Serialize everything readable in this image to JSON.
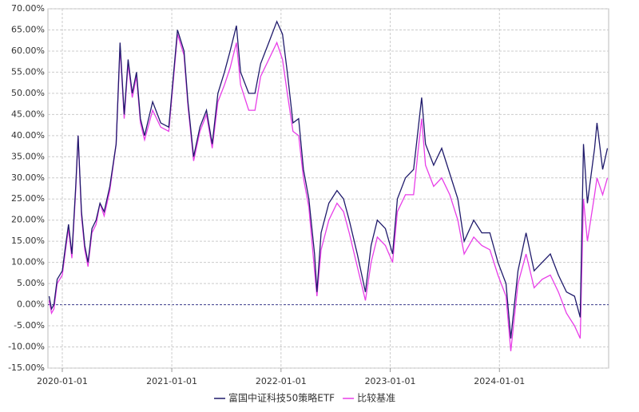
{
  "chart_data": {
    "type": "line",
    "x": [
      "2019-11-18",
      "2019-11-26",
      "2019-12-04",
      "2019-12-15",
      "2020-01-01",
      "2020-01-12",
      "2020-01-22",
      "2020-02-02",
      "2020-02-15",
      "2020-02-23",
      "2020-03-05",
      "2020-03-16",
      "2020-03-27",
      "2020-04-09",
      "2020-04-23",
      "2020-05-06",
      "2020-05-20",
      "2020-06-08",
      "2020-06-29",
      "2020-07-12",
      "2020-07-26",
      "2020-08-08",
      "2020-08-22",
      "2020-09-05",
      "2020-09-18",
      "2020-10-02",
      "2020-10-29",
      "2020-11-25",
      "2020-12-22",
      "2021-01-01",
      "2021-01-20",
      "2021-02-11",
      "2021-02-24",
      "2021-03-15",
      "2021-04-05",
      "2021-04-27",
      "2021-05-16",
      "2021-06-04",
      "2021-06-26",
      "2021-07-15",
      "2021-08-05",
      "2021-08-19",
      "2021-09-15",
      "2021-10-06",
      "2021-10-25",
      "2021-11-21",
      "2021-12-18",
      "2022-01-06",
      "2022-01-22",
      "2022-02-10",
      "2022-03-01",
      "2022-03-17",
      "2022-04-04",
      "2022-04-23",
      "2022-05-01",
      "2022-05-15",
      "2022-06-10",
      "2022-07-07",
      "2022-07-29",
      "2022-08-17",
      "2022-09-13",
      "2022-10-10",
      "2022-10-29",
      "2022-11-19",
      "2022-12-16",
      "2023-01-09",
      "2023-01-25",
      "2023-02-21",
      "2023-03-20",
      "2023-04-02",
      "2023-04-16",
      "2023-04-29",
      "2023-05-26",
      "2023-06-22",
      "2023-07-19",
      "2023-08-15",
      "2023-09-05",
      "2023-10-07",
      "2023-11-03",
      "2023-11-30",
      "2023-12-27",
      "2024-01-23",
      "2024-02-08",
      "2024-03-03",
      "2024-03-30",
      "2024-04-26",
      "2024-05-23",
      "2024-06-19",
      "2024-07-16",
      "2024-08-12",
      "2024-09-08",
      "2024-09-27",
      "2024-10-08",
      "2024-10-21",
      "2024-11-14",
      "2024-11-22",
      "2024-12-11",
      "2024-12-27"
    ],
    "series": [
      {
        "name": "富国中证科技50策略ETF",
        "color": "#1f1a6b",
        "values": [
          2,
          -1,
          0,
          6,
          8,
          14,
          19,
          12,
          28,
          40,
          22,
          14,
          10,
          18,
          20,
          24,
          22,
          28,
          38,
          62,
          45,
          58,
          50,
          55,
          44,
          40,
          48,
          43,
          42,
          50,
          65,
          60,
          48,
          35,
          42,
          46,
          38,
          50,
          55,
          60,
          66,
          55,
          50,
          50,
          57,
          62,
          67,
          64,
          55,
          43,
          44,
          32,
          25,
          12,
          3,
          17,
          24,
          27,
          25,
          20,
          12,
          3,
          14,
          20,
          18,
          12,
          25,
          30,
          32,
          40,
          49,
          38,
          33,
          37,
          31,
          25,
          15,
          20,
          17,
          17,
          10,
          5,
          -8,
          8,
          17,
          8,
          10,
          12,
          7,
          3,
          2,
          -3,
          38,
          24,
          37,
          43,
          32,
          37
        ]
      },
      {
        "name": "比较基准",
        "color": "#e83ee8",
        "values": [
          1,
          -2,
          -1,
          5,
          7,
          13,
          18,
          11,
          27,
          40,
          21,
          13,
          9,
          17,
          19,
          24,
          21,
          27,
          38,
          61,
          44,
          57,
          49,
          54,
          43,
          39,
          46,
          42,
          41,
          49,
          64,
          59,
          47,
          34,
          41,
          45,
          37,
          48,
          52,
          56,
          62,
          52,
          46,
          46,
          54,
          58,
          62,
          58,
          50,
          41,
          40,
          30,
          23,
          8,
          2,
          13,
          20,
          24,
          22,
          17,
          9,
          1,
          10,
          16,
          14,
          10,
          22,
          26,
          26,
          35,
          44,
          33,
          28,
          30,
          26,
          20,
          12,
          16,
          14,
          13,
          7,
          2,
          -11,
          5,
          12,
          4,
          6,
          7,
          3,
          -2,
          -5,
          -8,
          25,
          15,
          26,
          30,
          26,
          30
        ]
      }
    ],
    "xlim": [
      "2019-11-14",
      "2024-12-31"
    ],
    "xticks": [
      "2020-01-01",
      "2021-01-01",
      "2022-01-01",
      "2023-01-01",
      "2024-01-01"
    ],
    "ylim": [
      -15,
      70
    ],
    "yticks": [
      {
        "value": -15,
        "label": "-15.00%"
      },
      {
        "value": -10,
        "label": "-10.00%"
      },
      {
        "value": -5,
        "label": "-5.00%"
      },
      {
        "value": 0,
        "label": "0.00%"
      },
      {
        "value": 5,
        "label": "5.00%"
      },
      {
        "value": 10,
        "label": "10.00%"
      },
      {
        "value": 15,
        "label": "15.00%"
      },
      {
        "value": 20,
        "label": "20.00%"
      },
      {
        "value": 25,
        "label": "25.00%"
      },
      {
        "value": 30,
        "label": "30.00%"
      },
      {
        "value": 35,
        "label": "35.00%"
      },
      {
        "value": 40,
        "label": "40.00%"
      },
      {
        "value": 45,
        "label": "45.00%"
      },
      {
        "value": 50,
        "label": "50.00%"
      },
      {
        "value": 55,
        "label": "55.00%"
      },
      {
        "value": 60,
        "label": "60.00%"
      },
      {
        "value": 65,
        "label": "65.00%"
      },
      {
        "value": 70,
        "label": "70.00%"
      }
    ],
    "grid": true,
    "legend": "bottom"
  }
}
